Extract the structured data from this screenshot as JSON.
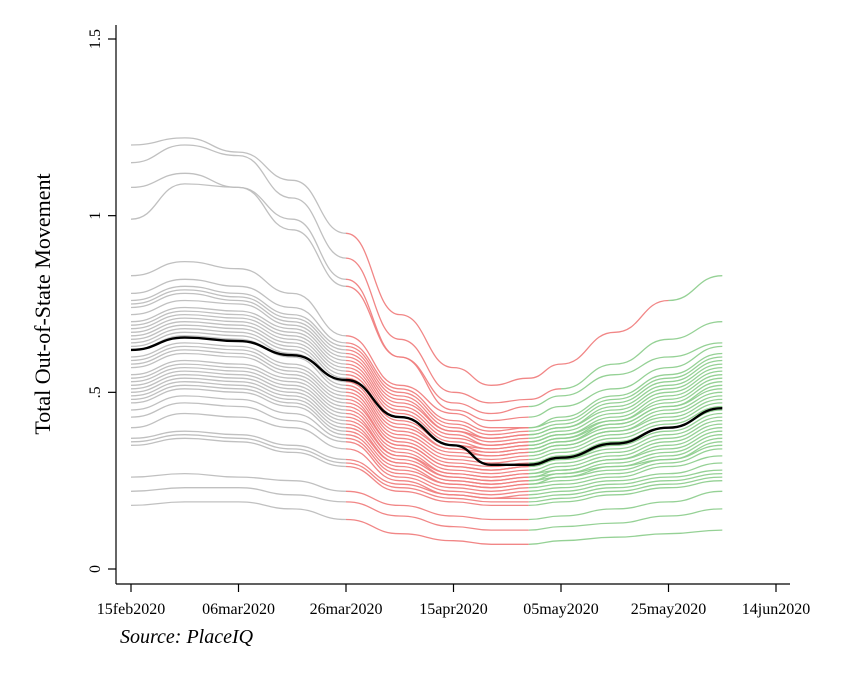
{
  "chart_data": {
    "type": "line",
    "title": "",
    "xlabel": "",
    "ylabel": "Total Out-of-State Movement",
    "x_ticks": [
      "15feb2020",
      "06mar2020",
      "26mar2020",
      "15apr2020",
      "05may2020",
      "25may2020",
      "14jun2020"
    ],
    "x_range": [
      "2020-02-15",
      "2020-06-14"
    ],
    "ylim": [
      0,
      1.5
    ],
    "y_ticks": [
      {
        "value": 0,
        "label": "0"
      },
      {
        "value": 0.5,
        "label": ".5"
      },
      {
        "value": 1,
        "label": "1"
      },
      {
        "value": 1.5,
        "label": "1.5"
      }
    ],
    "grid": false,
    "legend": "none",
    "colors": {
      "before": "#bdbdbd",
      "during": "#f08080",
      "after": "#8fcf8f",
      "average": "#000000"
    },
    "average_series": {
      "x": [
        "2020-02-15",
        "2020-02-25",
        "2020-03-06",
        "2020-03-16",
        "2020-03-26",
        "2020-04-05",
        "2020-04-15",
        "2020-04-22",
        "2020-04-29",
        "2020-05-05",
        "2020-05-15",
        "2020-05-25",
        "2020-06-04"
      ],
      "values": [
        0.62,
        0.655,
        0.645,
        0.605,
        0.535,
        0.43,
        0.35,
        0.295,
        0.295,
        0.315,
        0.355,
        0.4,
        0.455
      ]
    },
    "state_series": [
      {
        "values": [
          1.2,
          1.22,
          1.18,
          1.1,
          0.95,
          0.72,
          0.57,
          0.52,
          0.54,
          0.58,
          0.67,
          0.76,
          0.83
        ],
        "end_restriction": "2020-05-25"
      },
      {
        "values": [
          1.15,
          1.2,
          1.17,
          1.05,
          0.88,
          0.65,
          0.5,
          0.47,
          0.48,
          0.51,
          0.58,
          0.65,
          0.7
        ],
        "end_restriction": "2020-05-05"
      },
      {
        "values": [
          1.08,
          1.12,
          1.08,
          0.96,
          0.8,
          0.6,
          0.47,
          0.44,
          0.46,
          0.49,
          0.55,
          0.6,
          0.64
        ]
      },
      {
        "values": [
          0.99,
          1.09,
          1.08,
          0.99,
          0.82,
          0.6,
          0.45,
          0.42,
          0.43,
          0.46,
          0.51,
          0.57,
          0.63
        ]
      },
      {
        "values": [
          0.83,
          0.87,
          0.85,
          0.78,
          0.66,
          0.52,
          0.44,
          0.4,
          0.4,
          0.43,
          0.49,
          0.55,
          0.61
        ]
      },
      {
        "values": [
          0.78,
          0.82,
          0.8,
          0.74,
          0.64,
          0.51,
          0.42,
          0.39,
          0.4,
          0.42,
          0.48,
          0.54,
          0.6
        ]
      },
      {
        "values": [
          0.76,
          0.8,
          0.78,
          0.72,
          0.63,
          0.5,
          0.41,
          0.38,
          0.39,
          0.41,
          0.47,
          0.53,
          0.59
        ]
      },
      {
        "values": [
          0.75,
          0.79,
          0.77,
          0.71,
          0.62,
          0.49,
          0.4,
          0.37,
          0.38,
          0.4,
          0.46,
          0.52,
          0.58
        ]
      },
      {
        "values": [
          0.74,
          0.78,
          0.76,
          0.7,
          0.61,
          0.48,
          0.39,
          0.37,
          0.38,
          0.4,
          0.45,
          0.51,
          0.57
        ]
      },
      {
        "values": [
          0.72,
          0.76,
          0.75,
          0.69,
          0.6,
          0.47,
          0.39,
          0.36,
          0.37,
          0.39,
          0.44,
          0.5,
          0.56
        ]
      },
      {
        "values": [
          0.7,
          0.74,
          0.73,
          0.68,
          0.59,
          0.46,
          0.38,
          0.35,
          0.36,
          0.38,
          0.43,
          0.49,
          0.55
        ]
      },
      {
        "values": [
          0.69,
          0.73,
          0.72,
          0.67,
          0.58,
          0.45,
          0.37,
          0.35,
          0.36,
          0.38,
          0.42,
          0.48,
          0.54
        ]
      },
      {
        "values": [
          0.68,
          0.72,
          0.71,
          0.66,
          0.57,
          0.44,
          0.36,
          0.34,
          0.35,
          0.37,
          0.42,
          0.47,
          0.53
        ]
      },
      {
        "values": [
          0.67,
          0.71,
          0.7,
          0.65,
          0.56,
          0.43,
          0.35,
          0.34,
          0.35,
          0.37,
          0.41,
          0.46,
          0.52
        ]
      },
      {
        "values": [
          0.66,
          0.7,
          0.69,
          0.64,
          0.55,
          0.42,
          0.35,
          0.33,
          0.34,
          0.36,
          0.41,
          0.46,
          0.51
        ]
      },
      {
        "values": [
          0.65,
          0.69,
          0.68,
          0.63,
          0.54,
          0.41,
          0.34,
          0.33,
          0.34,
          0.36,
          0.4,
          0.45,
          0.5
        ]
      },
      {
        "values": [
          0.64,
          0.68,
          0.67,
          0.62,
          0.53,
          0.4,
          0.34,
          0.32,
          0.33,
          0.35,
          0.39,
          0.44,
          0.49
        ]
      },
      {
        "values": [
          0.63,
          0.67,
          0.66,
          0.61,
          0.52,
          0.39,
          0.33,
          0.32,
          0.33,
          0.35,
          0.39,
          0.43,
          0.48
        ]
      },
      {
        "values": [
          0.62,
          0.66,
          0.65,
          0.6,
          0.51,
          0.38,
          0.32,
          0.31,
          0.32,
          0.34,
          0.38,
          0.42,
          0.47
        ]
      },
      {
        "values": [
          0.6,
          0.64,
          0.63,
          0.58,
          0.5,
          0.37,
          0.31,
          0.3,
          0.31,
          0.33,
          0.37,
          0.41,
          0.46
        ]
      },
      {
        "values": [
          0.59,
          0.63,
          0.62,
          0.57,
          0.49,
          0.36,
          0.3,
          0.29,
          0.3,
          0.32,
          0.36,
          0.4,
          0.45
        ]
      },
      {
        "values": [
          0.58,
          0.62,
          0.61,
          0.56,
          0.48,
          0.35,
          0.29,
          0.28,
          0.29,
          0.31,
          0.35,
          0.39,
          0.44
        ]
      },
      {
        "values": [
          0.57,
          0.61,
          0.6,
          0.55,
          0.47,
          0.35,
          0.29,
          0.28,
          0.29,
          0.31,
          0.34,
          0.38,
          0.43
        ]
      },
      {
        "values": [
          0.55,
          0.59,
          0.58,
          0.54,
          0.46,
          0.34,
          0.28,
          0.27,
          0.28,
          0.3,
          0.33,
          0.37,
          0.42
        ]
      },
      {
        "values": [
          0.54,
          0.58,
          0.57,
          0.53,
          0.45,
          0.33,
          0.27,
          0.26,
          0.27,
          0.29,
          0.32,
          0.36,
          0.41
        ]
      },
      {
        "values": [
          0.53,
          0.57,
          0.56,
          0.52,
          0.44,
          0.32,
          0.27,
          0.26,
          0.27,
          0.28,
          0.31,
          0.35,
          0.4
        ]
      },
      {
        "values": [
          0.52,
          0.56,
          0.55,
          0.51,
          0.43,
          0.32,
          0.26,
          0.25,
          0.26,
          0.28,
          0.31,
          0.34,
          0.39
        ]
      },
      {
        "values": [
          0.51,
          0.55,
          0.54,
          0.5,
          0.42,
          0.31,
          0.26,
          0.25,
          0.26,
          0.27,
          0.3,
          0.33,
          0.38
        ]
      },
      {
        "values": [
          0.5,
          0.54,
          0.53,
          0.49,
          0.41,
          0.3,
          0.25,
          0.24,
          0.25,
          0.27,
          0.29,
          0.32,
          0.37
        ]
      },
      {
        "values": [
          0.49,
          0.53,
          0.52,
          0.48,
          0.4,
          0.3,
          0.25,
          0.24,
          0.25,
          0.26,
          0.29,
          0.31,
          0.36
        ]
      },
      {
        "values": [
          0.48,
          0.52,
          0.51,
          0.47,
          0.39,
          0.29,
          0.24,
          0.23,
          0.24,
          0.26,
          0.28,
          0.31,
          0.35
        ]
      },
      {
        "values": [
          0.47,
          0.51,
          0.5,
          0.46,
          0.38,
          0.28,
          0.24,
          0.23,
          0.24,
          0.25,
          0.27,
          0.3,
          0.34
        ]
      },
      {
        "values": [
          0.45,
          0.49,
          0.48,
          0.44,
          0.37,
          0.27,
          0.23,
          0.22,
          0.23,
          0.24,
          0.26,
          0.29,
          0.32
        ]
      },
      {
        "values": [
          0.43,
          0.47,
          0.46,
          0.42,
          0.36,
          0.26,
          0.22,
          0.21,
          0.22,
          0.23,
          0.25,
          0.27,
          0.3
        ]
      },
      {
        "values": [
          0.4,
          0.44,
          0.43,
          0.4,
          0.34,
          0.25,
          0.21,
          0.2,
          0.21,
          0.22,
          0.24,
          0.26,
          0.28
        ]
      },
      {
        "values": [
          0.37,
          0.39,
          0.38,
          0.35,
          0.31,
          0.24,
          0.21,
          0.2,
          0.2,
          0.21,
          0.23,
          0.25,
          0.27
        ]
      },
      {
        "values": [
          0.36,
          0.38,
          0.37,
          0.34,
          0.3,
          0.23,
          0.2,
          0.19,
          0.19,
          0.2,
          0.22,
          0.24,
          0.26
        ]
      },
      {
        "values": [
          0.35,
          0.37,
          0.36,
          0.33,
          0.29,
          0.22,
          0.19,
          0.18,
          0.18,
          0.19,
          0.21,
          0.23,
          0.25
        ]
      },
      {
        "values": [
          0.26,
          0.27,
          0.26,
          0.25,
          0.22,
          0.18,
          0.15,
          0.14,
          0.14,
          0.15,
          0.17,
          0.19,
          0.22
        ]
      },
      {
        "values": [
          0.22,
          0.23,
          0.23,
          0.21,
          0.19,
          0.15,
          0.12,
          0.11,
          0.11,
          0.12,
          0.13,
          0.15,
          0.17
        ]
      },
      {
        "values": [
          0.18,
          0.19,
          0.19,
          0.17,
          0.14,
          0.1,
          0.08,
          0.07,
          0.07,
          0.08,
          0.09,
          0.1,
          0.11
        ]
      }
    ]
  },
  "source_note": "Source: PlaceIQ"
}
